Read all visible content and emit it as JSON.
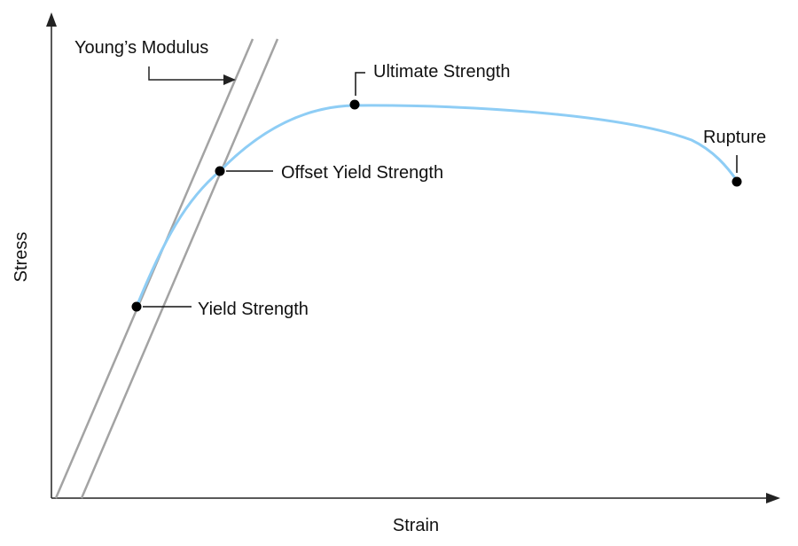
{
  "diagram": {
    "axes": {
      "x_label": "Strain",
      "y_label": "Stress"
    },
    "labels": {
      "youngs_modulus": "Young’s Modulus",
      "ultimate_strength": "Ultimate Strength",
      "rupture": "Rupture",
      "offset_yield_strength": "Offset Yield Strength",
      "yield_strength": "Yield Strength"
    },
    "colors": {
      "curve": "#8ecdf5",
      "modulus_lines": "#a3a3a3",
      "axes": "#222222",
      "points": "#000000",
      "leaders": "#111111"
    }
  }
}
